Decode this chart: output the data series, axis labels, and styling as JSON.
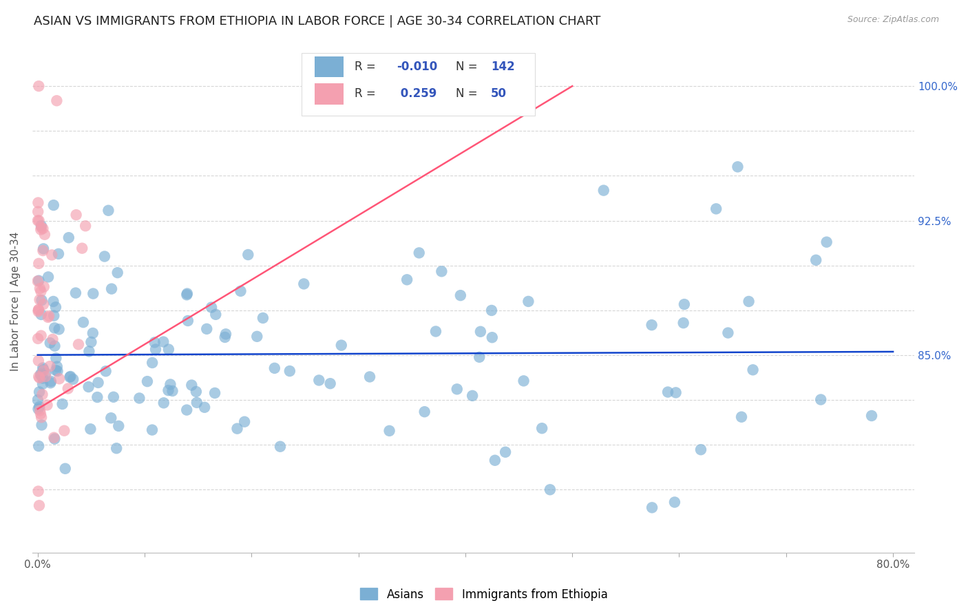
{
  "title": "ASIAN VS IMMIGRANTS FROM ETHIOPIA IN LABOR FORCE | AGE 30-34 CORRELATION CHART",
  "source": "Source: ZipAtlas.com",
  "ylabel": "In Labor Force | Age 30-34",
  "ylim": [
    74.0,
    102.0
  ],
  "xlim": [
    -0.005,
    0.82
  ],
  "asian_color": "#7BAFD4",
  "ethiopia_color": "#F4A0B0",
  "asian_trendline_color": "#1144CC",
  "ethiopia_trendline_color": "#FF5577",
  "R_asian": -0.01,
  "N_asian": 142,
  "R_ethiopia": 0.259,
  "N_ethiopia": 50,
  "legend_text_color": "#3355BB",
  "label_color": "#555555",
  "right_tick_color": "#3366CC",
  "background_color": "#FFFFFF",
  "title_fontsize": 13,
  "axis_label_fontsize": 11,
  "tick_fontsize": 11,
  "grid_color": "#CCCCCC",
  "ytick_vals": [
    77.5,
    80.0,
    82.5,
    85.0,
    87.5,
    90.0,
    92.5,
    95.0,
    97.5,
    100.0
  ],
  "right_ytick_labels": [
    "",
    "",
    "",
    "85.0%",
    "",
    "",
    "92.5%",
    "",
    "",
    "100.0%"
  ],
  "seed": 12345
}
